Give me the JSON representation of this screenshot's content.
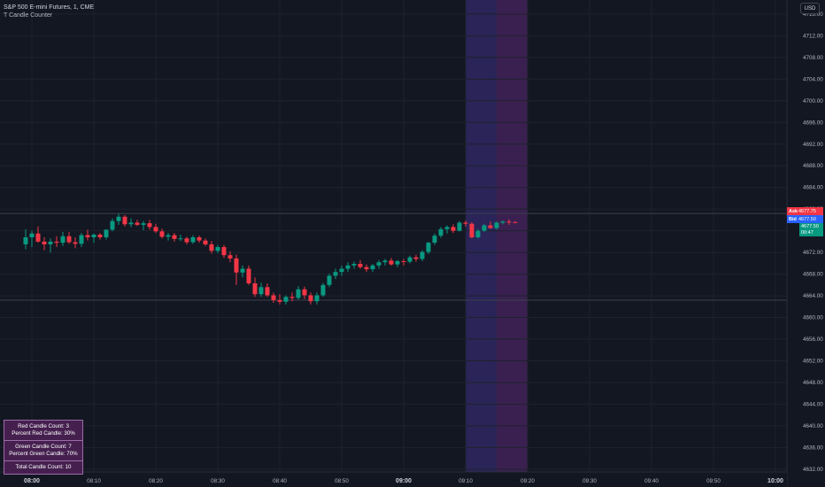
{
  "header": {
    "symbol_title": "S&P 500 E-mini Futures, 1, CME",
    "indicator_name": "T Candle Counter"
  },
  "currency_button": "USD",
  "quote_tags": {
    "ask_label": "Ask",
    "ask_price": "4677.75",
    "bid_label": "Bid",
    "bid_price": "4677.50",
    "last_price": "4677.50",
    "countdown": "00:47"
  },
  "counter_panel": {
    "red_count": "Red Candle Count: 3",
    "red_percent": "Percent Red Candle: 30%",
    "green_count": "Green Candle Count: 7",
    "green_percent": "Percent Green Candle: 70%",
    "total_count": "Total Candle Count: 10"
  },
  "colors": {
    "background": "#131722",
    "up": "#089981",
    "down": "#f23645",
    "highlight_blue": "#2a2458",
    "highlight_purple": "#3a2050",
    "grid": "#1e222d",
    "axis_text": "#b2b5be"
  },
  "chart_data": {
    "type": "candlestick",
    "interval": "1 minute",
    "time_axis": [
      "08:00",
      "08:10",
      "08:20",
      "08:30",
      "08:40",
      "08:50",
      "09:00",
      "09:10",
      "09:20",
      "09:30",
      "09:40",
      "09:50",
      "10:00"
    ],
    "y_ticks": [
      4716,
      4712,
      4708,
      4704,
      4700,
      4696,
      4692,
      4688,
      4684,
      4680,
      4676,
      4672,
      4668,
      4664,
      4660,
      4656,
      4652,
      4648,
      4644,
      4640,
      4636,
      4632
    ],
    "y_tick_labels": [
      "4716.00",
      "4712.00",
      "4708.00",
      "4704.00",
      "4700.00",
      "4696.00",
      "4692.00",
      "4688.00",
      "4684.00",
      "4680.00",
      "4676.00",
      "4672.00",
      "4668.00",
      "4664.00",
      "4660.00",
      "4656.00",
      "4652.00",
      "4648.00",
      "4644.00",
      "4640.00",
      "4636.00",
      "4632.00"
    ],
    "ylim": [
      4631,
      4718.6
    ],
    "start_time": "07:59",
    "highlight_sessions": [
      {
        "from": "09:10",
        "to": "09:15",
        "color": "blue"
      },
      {
        "from": "09:15",
        "to": "09:20",
        "color": "purple"
      }
    ],
    "horizontal_levels": [
      4679.2,
      4663.2
    ],
    "candles": [
      [
        4673.5,
        4676.3,
        4672.6,
        4674.8
      ],
      [
        4674.8,
        4676.0,
        4673.0,
        4675.5
      ],
      [
        4675.5,
        4676.8,
        4673.8,
        4674.0
      ],
      [
        4674.0,
        4674.8,
        4672.4,
        4673.5
      ],
      [
        4673.5,
        4674.6,
        4672.0,
        4674.0
      ],
      [
        4674.0,
        4675.0,
        4673.0,
        4673.8
      ],
      [
        4673.8,
        4675.8,
        4673.2,
        4675.0
      ],
      [
        4675.0,
        4675.8,
        4673.6,
        4673.9
      ],
      [
        4673.9,
        4674.8,
        4672.8,
        4673.6
      ],
      [
        4673.6,
        4675.6,
        4673.0,
        4675.2
      ],
      [
        4675.2,
        4676.2,
        4674.2,
        4674.8
      ],
      [
        4674.8,
        4675.5,
        4673.8,
        4675.3
      ],
      [
        4675.3,
        4675.6,
        4674.4,
        4674.8
      ],
      [
        4674.8,
        4676.3,
        4674.4,
        4676.2
      ],
      [
        4676.2,
        4678.3,
        4675.9,
        4677.8
      ],
      [
        4677.8,
        4679.2,
        4677.1,
        4678.6
      ],
      [
        4678.6,
        4678.9,
        4676.8,
        4677.2
      ],
      [
        4677.2,
        4678.3,
        4676.7,
        4677.5
      ],
      [
        4677.5,
        4678.0,
        4676.9,
        4677.1
      ],
      [
        4677.1,
        4677.8,
        4676.1,
        4677.4
      ],
      [
        4677.4,
        4678.0,
        4676.2,
        4676.7
      ],
      [
        4676.7,
        4677.3,
        4675.6,
        4675.9
      ],
      [
        4675.9,
        4676.4,
        4674.6,
        4674.9
      ],
      [
        4674.9,
        4675.6,
        4674.2,
        4675.2
      ],
      [
        4675.2,
        4675.6,
        4674.0,
        4674.5
      ],
      [
        4674.5,
        4675.3,
        4674.1,
        4674.6
      ],
      [
        4674.6,
        4674.9,
        4673.5,
        4673.9
      ],
      [
        4673.9,
        4675.2,
        4673.6,
        4674.8
      ],
      [
        4674.8,
        4675.1,
        4673.8,
        4674.2
      ],
      [
        4674.2,
        4674.6,
        4673.2,
        4673.5
      ],
      [
        4673.5,
        4674.1,
        4671.8,
        4672.3
      ],
      [
        4672.3,
        4673.4,
        4671.9,
        4673.0
      ],
      [
        4673.0,
        4673.4,
        4671.0,
        4671.5
      ],
      [
        4671.5,
        4672.2,
        4670.2,
        4670.9
      ],
      [
        4670.9,
        4671.6,
        4666.0,
        4668.3
      ],
      [
        4668.3,
        4669.6,
        4667.4,
        4669.0
      ],
      [
        4669.0,
        4669.6,
        4666.0,
        4666.3
      ],
      [
        4666.3,
        4667.4,
        4663.8,
        4664.3
      ],
      [
        4664.3,
        4666.4,
        4663.8,
        4665.6
      ],
      [
        4665.6,
        4666.3,
        4663.8,
        4664.1
      ],
      [
        4664.1,
        4664.6,
        4662.7,
        4663.2
      ],
      [
        4663.2,
        4664.3,
        4662.4,
        4662.9
      ],
      [
        4662.9,
        4664.1,
        4662.4,
        4663.8
      ],
      [
        4663.8,
        4664.6,
        4663.0,
        4663.6
      ],
      [
        4663.6,
        4665.8,
        4663.3,
        4665.2
      ],
      [
        4665.2,
        4665.7,
        4663.4,
        4664.1
      ],
      [
        4664.1,
        4664.6,
        4662.4,
        4663.0
      ],
      [
        4663.0,
        4664.6,
        4662.4,
        4664.1
      ],
      [
        4664.1,
        4666.4,
        4663.8,
        4666.0
      ],
      [
        4666.0,
        4668.1,
        4665.6,
        4667.7
      ],
      [
        4667.7,
        4669.0,
        4667.1,
        4668.4
      ],
      [
        4668.4,
        4669.6,
        4667.7,
        4669.0
      ],
      [
        4669.0,
        4670.2,
        4668.4,
        4669.6
      ],
      [
        4669.6,
        4670.3,
        4669.0,
        4669.9
      ],
      [
        4669.9,
        4670.6,
        4669.0,
        4669.3
      ],
      [
        4669.3,
        4669.8,
        4668.4,
        4668.9
      ],
      [
        4668.9,
        4669.9,
        4668.4,
        4669.6
      ],
      [
        4669.6,
        4670.6,
        4669.0,
        4670.2
      ],
      [
        4670.2,
        4670.8,
        4669.6,
        4670.5
      ],
      [
        4670.5,
        4671.0,
        4669.6,
        4669.8
      ],
      [
        4669.8,
        4670.6,
        4669.3,
        4670.4
      ],
      [
        4670.4,
        4670.8,
        4669.6,
        4670.3
      ],
      [
        4670.3,
        4671.4,
        4670.0,
        4671.1
      ],
      [
        4671.1,
        4671.6,
        4670.3,
        4670.8
      ],
      [
        4670.8,
        4672.4,
        4670.4,
        4672.1
      ],
      [
        4672.1,
        4674.0,
        4671.7,
        4673.8
      ],
      [
        4673.8,
        4675.5,
        4673.4,
        4675.1
      ],
      [
        4675.1,
        4676.7,
        4674.7,
        4676.3
      ],
      [
        4676.3,
        4677.0,
        4675.5,
        4676.7
      ],
      [
        4676.7,
        4677.2,
        4675.6,
        4676.0
      ],
      [
        4676.0,
        4677.8,
        4675.9,
        4677.5
      ],
      [
        4677.5,
        4677.9,
        4676.8,
        4677.3
      ],
      [
        4677.3,
        4677.6,
        4674.6,
        4674.8
      ],
      [
        4674.8,
        4676.3,
        4674.6,
        4676.0
      ],
      [
        4676.0,
        4677.3,
        4675.8,
        4677.0
      ],
      [
        4677.0,
        4677.7,
        4676.4,
        4676.5
      ],
      [
        4676.5,
        4677.7,
        4676.2,
        4677.5
      ],
      [
        4677.5,
        4677.9,
        4677.2,
        4677.7
      ],
      [
        4677.7,
        4678.1,
        4677.1,
        4677.6
      ],
      [
        4677.6,
        4677.8,
        4677.5,
        4677.5
      ]
    ]
  }
}
